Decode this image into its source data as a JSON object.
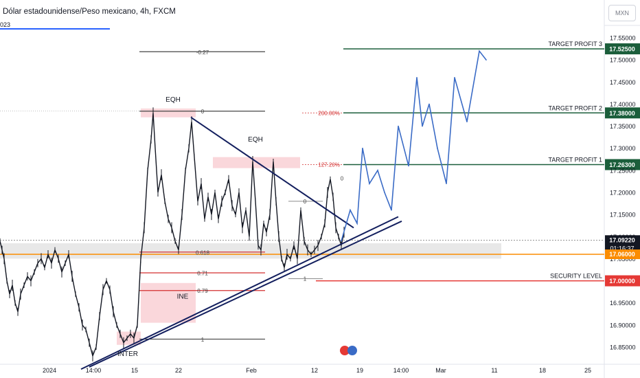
{
  "header": {
    "title": "Dólar estadounidense/Peso mexicano, 4h, FXCM",
    "indicator": "023",
    "currency_button": "MXN"
  },
  "colors": {
    "up": "#131722",
    "target_line": "#1b5e3b",
    "security_line": "#e53935",
    "support_band": "#fb8c00",
    "trend": "#131f5e",
    "projection": "#3a6bc6",
    "fib_red": "#d32f2f",
    "zone_pink": "#f8c6cc"
  },
  "chart_data": {
    "type": "line",
    "title": "Dólar estadounidense/Peso mexicano, 4h, FXCM",
    "ylim": [
      16.805,
      17.585
    ],
    "y_ticks": [
      "17.55000",
      "17.50000",
      "17.45000",
      "17.40000",
      "17.35000",
      "17.30000",
      "17.25000",
      "17.20000",
      "17.15000",
      "17.10000",
      "17.05000",
      "16.95000",
      "16.90000",
      "16.85000"
    ],
    "x_ticks": [
      "2024",
      "14:00",
      "15",
      "22",
      "Feb",
      "12",
      "19",
      "14:00",
      "Mar",
      "11",
      "18",
      "25"
    ],
    "price_series": {
      "name": "USD/MXN",
      "points": [
        [
          0,
          17.09
        ],
        [
          3,
          17.07
        ],
        [
          6,
          17.05
        ],
        [
          10,
          17.0
        ],
        [
          14,
          16.97
        ],
        [
          18,
          16.99
        ],
        [
          22,
          16.95
        ],
        [
          26,
          16.93
        ],
        [
          30,
          16.97
        ],
        [
          35,
          16.99
        ],
        [
          40,
          17.01
        ],
        [
          45,
          17.0
        ],
        [
          50,
          17.02
        ],
        [
          55,
          17.04
        ],
        [
          60,
          17.05
        ],
        [
          65,
          17.03
        ],
        [
          70,
          17.06
        ],
        [
          75,
          17.04
        ],
        [
          80,
          17.07
        ],
        [
          85,
          17.05
        ],
        [
          90,
          17.02
        ],
        [
          95,
          17.04
        ],
        [
          100,
          17.06
        ],
        [
          105,
          17.01
        ],
        [
          110,
          16.97
        ],
        [
          115,
          16.94
        ],
        [
          120,
          16.9
        ],
        [
          125,
          16.89
        ],
        [
          130,
          16.86
        ],
        [
          135,
          16.83
        ],
        [
          140,
          16.85
        ],
        [
          145,
          16.92
        ],
        [
          150,
          16.98
        ],
        [
          155,
          17.0
        ],
        [
          160,
          16.98
        ],
        [
          165,
          16.93
        ],
        [
          170,
          16.9
        ],
        [
          175,
          16.88
        ],
        [
          180,
          16.86
        ],
        [
          185,
          16.87
        ],
        [
          190,
          16.88
        ],
        [
          195,
          16.87
        ],
        [
          200,
          16.9
        ],
        [
          205,
          17.05
        ],
        [
          210,
          17.12
        ],
        [
          215,
          17.25
        ],
        [
          220,
          17.32
        ],
        [
          223,
          17.38
        ],
        [
          226,
          17.3
        ],
        [
          230,
          17.2
        ],
        [
          235,
          17.24
        ],
        [
          240,
          17.18
        ],
        [
          245,
          17.14
        ],
        [
          250,
          17.12
        ],
        [
          255,
          17.09
        ],
        [
          260,
          17.07
        ],
        [
          265,
          17.15
        ],
        [
          270,
          17.25
        ],
        [
          275,
          17.3
        ],
        [
          279,
          17.36
        ],
        [
          283,
          17.28
        ],
        [
          288,
          17.18
        ],
        [
          293,
          17.22
        ],
        [
          298,
          17.14
        ],
        [
          303,
          17.19
        ],
        [
          308,
          17.15
        ],
        [
          313,
          17.2
        ],
        [
          318,
          17.14
        ],
        [
          323,
          17.18
        ],
        [
          328,
          17.2
        ],
        [
          333,
          17.23
        ],
        [
          338,
          17.17
        ],
        [
          343,
          17.15
        ],
        [
          348,
          17.2
        ],
        [
          353,
          17.12
        ],
        [
          358,
          17.16
        ],
        [
          363,
          17.1
        ],
        [
          368,
          17.27
        ],
        [
          372,
          17.18
        ],
        [
          376,
          17.08
        ],
        [
          380,
          17.07
        ],
        [
          384,
          17.13
        ],
        [
          388,
          17.11
        ],
        [
          393,
          17.15
        ],
        [
          398,
          17.27
        ],
        [
          402,
          17.18
        ],
        [
          406,
          17.1
        ],
        [
          410,
          17.05
        ],
        [
          414,
          17.03
        ],
        [
          418,
          17.06
        ],
        [
          423,
          17.05
        ],
        [
          428,
          17.08
        ],
        [
          433,
          17.05
        ],
        [
          438,
          17.16
        ],
        [
          443,
          17.09
        ],
        [
          448,
          17.07
        ],
        [
          453,
          17.06
        ],
        [
          458,
          17.07
        ],
        [
          463,
          17.08
        ],
        [
          468,
          17.1
        ],
        [
          473,
          17.13
        ],
        [
          477,
          17.2
        ],
        [
          481,
          17.23
        ],
        [
          485,
          17.19
        ],
        [
          489,
          17.12
        ],
        [
          493,
          17.1
        ],
        [
          497,
          17.08
        ],
        [
          501,
          17.11
        ]
      ]
    },
    "projection": {
      "name": "",
      "points": [
        [
          497,
          17.09
        ],
        [
          510,
          17.16
        ],
        [
          520,
          17.13
        ],
        [
          528,
          17.3
        ],
        [
          538,
          17.22
        ],
        [
          550,
          17.25
        ],
        [
          560,
          17.2
        ],
        [
          570,
          17.16
        ],
        [
          580,
          17.35
        ],
        [
          595,
          17.26
        ],
        [
          607,
          17.46
        ],
        [
          615,
          17.35
        ],
        [
          625,
          17.4
        ],
        [
          637,
          17.3
        ],
        [
          650,
          17.22
        ],
        [
          662,
          17.46
        ],
        [
          680,
          17.36
        ],
        [
          698,
          17.52
        ],
        [
          708,
          17.5
        ]
      ]
    },
    "trendlines": [
      {
        "from": [
          278,
          17.37
        ],
        "to": [
          515,
          17.12
        ]
      },
      {
        "from": [
          118,
          16.8
        ],
        "to": [
          580,
          17.145
        ]
      },
      {
        "from": [
          130,
          16.805
        ],
        "to": [
          585,
          17.135
        ]
      }
    ],
    "levels": [
      {
        "label": "TARGET PROFIT 3",
        "value": 17.525,
        "price": "17.52500",
        "from_x": 500
      },
      {
        "label": "TARGET PROFIT 2",
        "value": 17.38,
        "price": "17.38000",
        "from_x": 500
      },
      {
        "label": "TARGET PROFIT 1",
        "value": 17.263,
        "price": "17.26300",
        "from_x": 500
      },
      {
        "label": "SECURITY LEVEL",
        "value": 17.0,
        "price": "17.00000",
        "from_x": 460
      }
    ],
    "price_tags": [
      {
        "value": 17.0922,
        "label": "17.09220",
        "sub": "01:16:37",
        "kind": "current"
      },
      {
        "value": 17.06,
        "label": "17.06000",
        "sub": "",
        "kind": "support"
      }
    ],
    "support_band": {
      "y1": 17.085,
      "y2": 17.05,
      "x1": 0,
      "x2": 730,
      "line": 17.06
    },
    "fib_black": [
      {
        "label": "-0.27",
        "value": 17.5185
      },
      {
        "label": "0",
        "value": 17.384
      },
      {
        "label": "1",
        "value": 16.868
      }
    ],
    "fib_red": [
      {
        "label": "0.618",
        "value": 17.065
      },
      {
        "label": "0.71",
        "value": 17.018
      },
      {
        "label": "0.79",
        "value": 16.978
      }
    ],
    "fib_ext": [
      {
        "label": "200.00%",
        "value": 17.38
      },
      {
        "label": "127.20%",
        "value": 17.263
      }
    ],
    "small_fib": [
      {
        "label": "0",
        "value": 17.18
      },
      {
        "label": "1",
        "value": 17.005
      }
    ],
    "right_zero": {
      "label": "0",
      "value": 17.232
    },
    "annotations": [
      {
        "label": "EQH",
        "x": 252,
        "value": 17.405
      },
      {
        "label": "EQH",
        "x": 372,
        "value": 17.315
      },
      {
        "label": "INE",
        "x": 266,
        "value": 16.96
      },
      {
        "label": "INTER",
        "x": 186,
        "value": 16.83
      }
    ],
    "zones": [
      {
        "x1": 205,
        "x2": 285,
        "v1": 17.39,
        "v2": 17.37
      },
      {
        "x1": 310,
        "x2": 437,
        "v1": 17.28,
        "v2": 17.255
      },
      {
        "x1": 205,
        "x2": 285,
        "v1": 16.995,
        "v2": 16.905
      },
      {
        "x1": 170,
        "x2": 205,
        "v1": 16.885,
        "v2": 16.855
      }
    ]
  }
}
